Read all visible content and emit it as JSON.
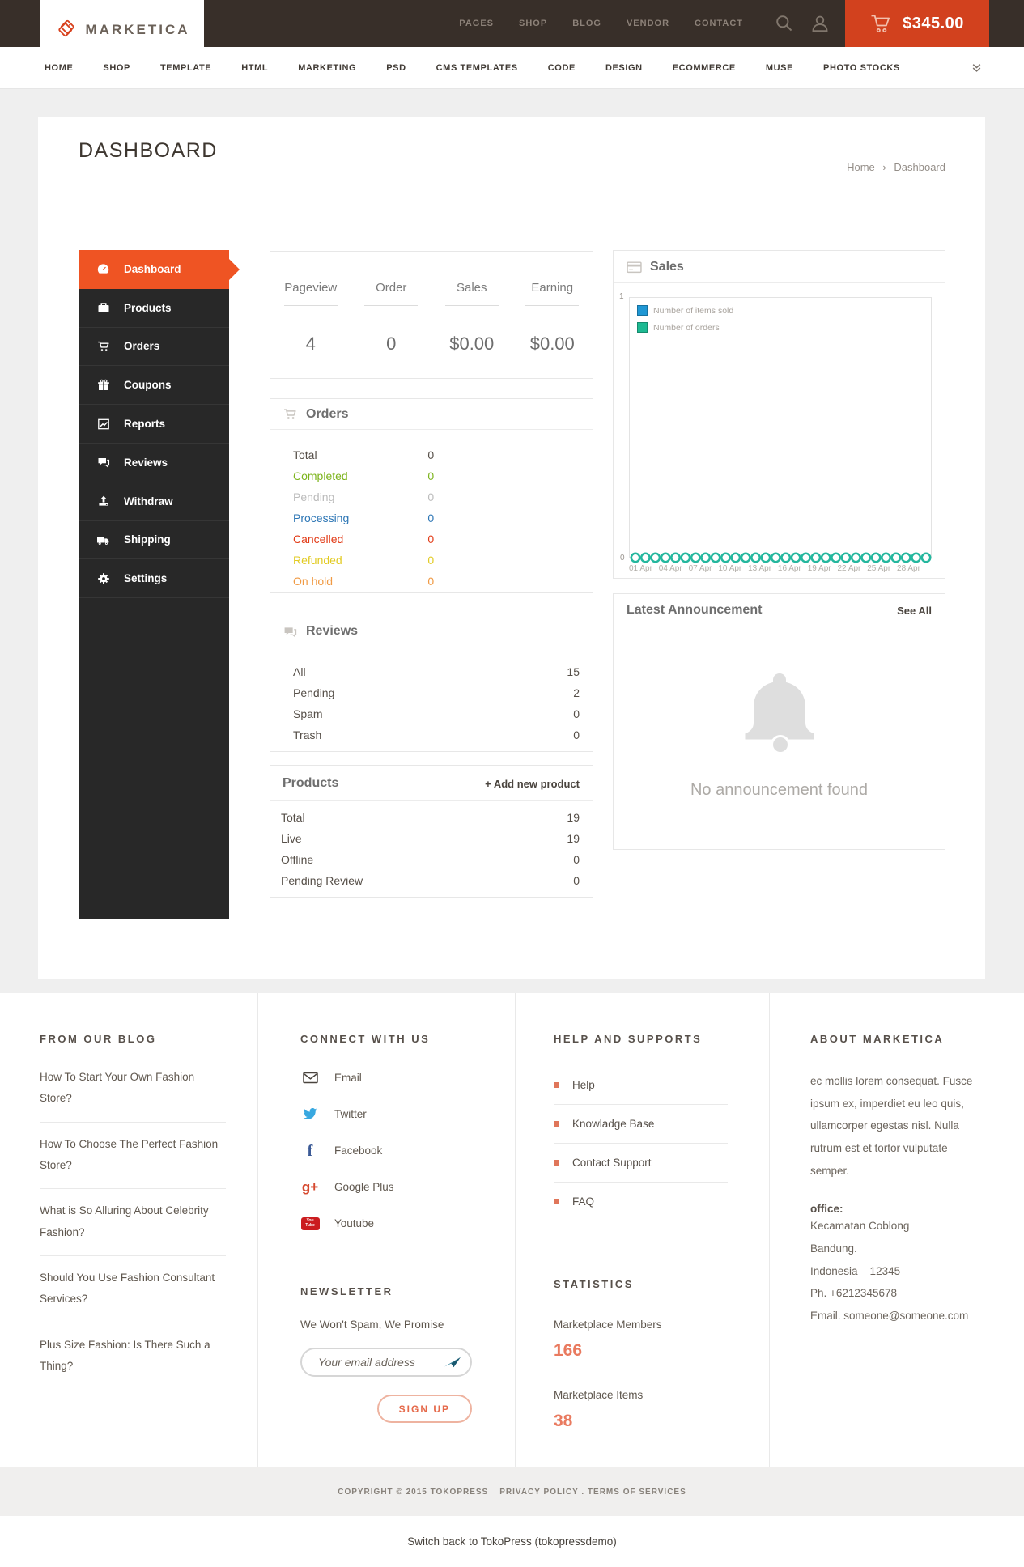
{
  "brand": {
    "name": "MARKETICA"
  },
  "topbar": {
    "nav": [
      {
        "label": "PAGES"
      },
      {
        "label": "SHOP"
      },
      {
        "label": "BLOG"
      },
      {
        "label": "VENDOR"
      },
      {
        "label": "CONTACT"
      }
    ],
    "cart_total": "$345.00"
  },
  "mainnav": {
    "items": [
      {
        "label": "HOME"
      },
      {
        "label": "SHOP"
      },
      {
        "label": "TEMPLATE"
      },
      {
        "label": "HTML"
      },
      {
        "label": "MARKETING"
      },
      {
        "label": "PSD"
      },
      {
        "label": "CMS TEMPLATES"
      },
      {
        "label": "CODE"
      },
      {
        "label": "DESIGN"
      },
      {
        "label": "ECOMMERCE"
      },
      {
        "label": "MUSE"
      },
      {
        "label": "PHOTO STOCKS"
      }
    ]
  },
  "page": {
    "title": "DASHBOARD",
    "breadcrumb_home": "Home",
    "breadcrumb_separator": "›",
    "breadcrumb_current": "Dashboard"
  },
  "sidebar": {
    "items": [
      {
        "label": "Dashboard"
      },
      {
        "label": "Products"
      },
      {
        "label": "Orders"
      },
      {
        "label": "Coupons"
      },
      {
        "label": "Reports"
      },
      {
        "label": "Reviews"
      },
      {
        "label": "Withdraw"
      },
      {
        "label": "Shipping"
      },
      {
        "label": "Settings"
      }
    ]
  },
  "stats": {
    "columns": [
      {
        "label": "Pageview",
        "value": "4"
      },
      {
        "label": "Order",
        "value": "0"
      },
      {
        "label": "Sales",
        "value": "$0.00"
      },
      {
        "label": "Earning",
        "value": "$0.00"
      }
    ]
  },
  "orders_panel": {
    "title": "Orders",
    "rows": [
      {
        "label": "Total",
        "value": "0",
        "color": "#564f48"
      },
      {
        "label": "Completed",
        "value": "0",
        "color": "#7db41d"
      },
      {
        "label": "Pending",
        "value": "0",
        "color": "#bcbcbc"
      },
      {
        "label": "Processing",
        "value": "0",
        "color": "#2d76b5"
      },
      {
        "label": "Cancelled",
        "value": "0",
        "color": "#e23b17"
      },
      {
        "label": "Refunded",
        "value": "0",
        "color": "#e2cb24"
      },
      {
        "label": "On hold",
        "value": "0",
        "color": "#f09a44"
      }
    ]
  },
  "reviews_panel": {
    "title": "Reviews",
    "rows": [
      {
        "label": "All",
        "value": "15"
      },
      {
        "label": "Pending",
        "value": "2"
      },
      {
        "label": "Spam",
        "value": "0"
      },
      {
        "label": "Trash",
        "value": "0"
      }
    ]
  },
  "products_panel": {
    "title": "Products",
    "add_link": "+ Add new product",
    "rows": [
      {
        "label": "Total",
        "value": "19"
      },
      {
        "label": "Live",
        "value": "19"
      },
      {
        "label": "Offline",
        "value": "0"
      },
      {
        "label": "Pending Review",
        "value": "0"
      }
    ]
  },
  "sales_panel": {
    "title": "Sales",
    "y_axis_top": "1",
    "y_axis_bottom": "0",
    "legend": [
      {
        "label": "Number of items sold",
        "color": "#1f97d4"
      },
      {
        "label": "Number of orders",
        "color": "#1db992"
      }
    ],
    "x_labels": [
      "01 Apr",
      "04 Apr",
      "07 Apr",
      "10 Apr",
      "13 Apr",
      "16 Apr",
      "19 Apr",
      "22 Apr",
      "25 Apr",
      "28 Apr"
    ],
    "chart_data": {
      "type": "line",
      "x": [
        "01 Apr",
        "02 Apr",
        "03 Apr",
        "04 Apr",
        "05 Apr",
        "06 Apr",
        "07 Apr",
        "08 Apr",
        "09 Apr",
        "10 Apr",
        "11 Apr",
        "12 Apr",
        "13 Apr",
        "14 Apr",
        "15 Apr",
        "16 Apr",
        "17 Apr",
        "18 Apr",
        "19 Apr",
        "20 Apr",
        "21 Apr",
        "22 Apr",
        "23 Apr",
        "24 Apr",
        "25 Apr",
        "26 Apr",
        "27 Apr",
        "28 Apr",
        "29 Apr",
        "30 Apr"
      ],
      "series": [
        {
          "name": "Number of items sold",
          "values": [
            0,
            0,
            0,
            0,
            0,
            0,
            0,
            0,
            0,
            0,
            0,
            0,
            0,
            0,
            0,
            0,
            0,
            0,
            0,
            0,
            0,
            0,
            0,
            0,
            0,
            0,
            0,
            0,
            0,
            0
          ]
        },
        {
          "name": "Number of orders",
          "values": [
            0,
            0,
            0,
            0,
            0,
            0,
            0,
            0,
            0,
            0,
            0,
            0,
            0,
            0,
            0,
            0,
            0,
            0,
            0,
            0,
            0,
            0,
            0,
            0,
            0,
            0,
            0,
            0,
            0,
            0
          ]
        }
      ],
      "ylim": [
        0,
        1
      ],
      "marker_color": "#25b79e",
      "grid": false,
      "legend_position": "top-left"
    }
  },
  "announcement_panel": {
    "title": "Latest Announcement",
    "action": "See All",
    "empty_message": "No announcement found"
  },
  "footer": {
    "blog": {
      "heading": "FROM OUR BLOG",
      "items": [
        "How To Start Your Own Fashion Store?",
        "How To Choose The Perfect Fashion Store?",
        "What is So Alluring About Celebrity Fashion?",
        "Should You Use Fashion Consultant Services?",
        "Plus Size Fashion: Is There Such a Thing?"
      ]
    },
    "connect": {
      "heading": "CONNECT WITH US",
      "links": [
        {
          "label": "Email"
        },
        {
          "label": "Twitter"
        },
        {
          "label": "Facebook",
          "glyph": "f"
        },
        {
          "label": "Google Plus",
          "glyph": "g+"
        },
        {
          "label": "Youtube",
          "icon_text_top": "You",
          "icon_text_bottom": "Tube"
        }
      ]
    },
    "newsletter": {
      "heading": "NEWSLETTER",
      "note": "We Won't Spam, We Promise",
      "placeholder": "Your email address",
      "button": "SIGN UP"
    },
    "help": {
      "heading": "HELP AND SUPPORTS",
      "items": [
        "Help",
        "Knowladge Base",
        "Contact Support",
        "FAQ"
      ]
    },
    "statistics": {
      "heading": "STATISTICS",
      "entries": [
        {
          "label": "Marketplace Members",
          "value": "166"
        },
        {
          "label": "Marketplace Items",
          "value": "38"
        }
      ]
    },
    "about": {
      "heading": "ABOUT MARKETICA",
      "text": "ec mollis lorem consequat. Fusce ipsum ex, imperdiet eu leo quis, ullamcorper egestas nisl. Nulla rutrum est et tortor vulputate semper.",
      "office_label": "office:",
      "address_lines": [
        "Kecamatan Coblong",
        "Bandung.",
        "Indonesia – 12345",
        "Ph. +6212345678",
        "Email. someone@someone.com"
      ]
    }
  },
  "bottom": {
    "copyright": "COPYRIGHT © 2015 TOKOPRESS",
    "links": "PRIVACY POLICY . TERMS OF SERVICES",
    "admin_bar": "Switch back to TokoPress (tokopressdemo)"
  },
  "colors": {
    "accent_orange": "#ef5423",
    "cart_red": "#d2411e",
    "topbar_brown": "#382f29",
    "sidebar_dark": "#282828",
    "teal": "#25b79e",
    "legend_blue": "#1f97d4",
    "legend_green": "#1db992",
    "stat_orange": "#e97a5f",
    "page_bg": "#efefef"
  }
}
